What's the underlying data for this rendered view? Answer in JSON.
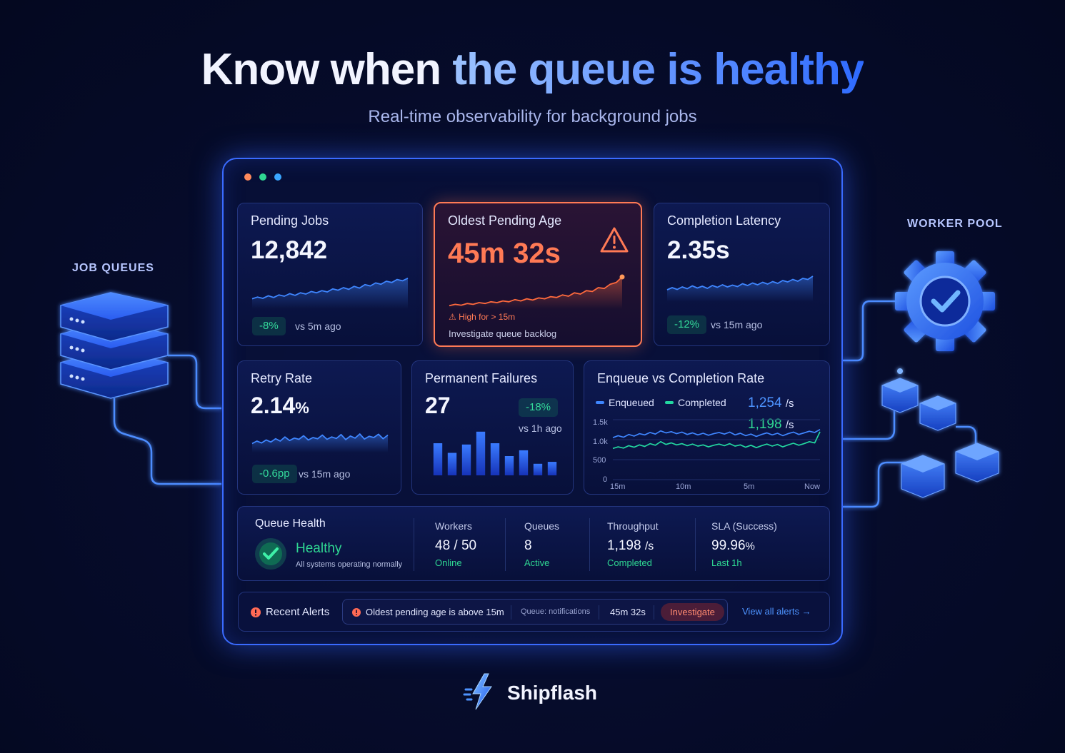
{
  "headline": {
    "part1": "Know when ",
    "part2": "the queue is healthy"
  },
  "subhead": "Real-time observability for background jobs",
  "side_labels": {
    "left": "JOB QUEUES",
    "right": "WORKER POOL"
  },
  "colors": {
    "accent": "#3a6bff",
    "alert": "#ff7a55",
    "success": "#2fd792",
    "series_blue": "#3f86ff",
    "series_green": "#23d7a0"
  },
  "cards": {
    "pending_jobs": {
      "title": "Pending Jobs",
      "value": "12,842",
      "delta": "-8%",
      "compare": "vs 5m ago"
    },
    "oldest_pending": {
      "title": "Oldest Pending Age",
      "value": "45m 32s",
      "warning": "High for > 15m",
      "note": "Investigate queue backlog",
      "icon": "warning-triangle-icon"
    },
    "completion_latency": {
      "title": "Completion Latency",
      "value": "2.35s",
      "delta": "-12%",
      "compare": "vs 15m ago"
    },
    "retry_rate": {
      "title": "Retry Rate",
      "value": "2.14",
      "unit": "%",
      "delta": "-0.6pp",
      "compare": "vs 15m ago"
    },
    "permanent_failures": {
      "title": "Permanent Failures",
      "value": "27",
      "delta": "-18%",
      "compare": "vs 1h ago"
    },
    "enqueue_vs_completion": {
      "title": "Enqueue vs Completion Rate",
      "legend": {
        "enqueued": "Enqueued",
        "completed": "Completed"
      },
      "enqueued_rate": "1,254",
      "completed_rate": "1,198",
      "rate_unit": "/s",
      "y_ticks": [
        "1.5k",
        "1.0k",
        "500",
        "0"
      ],
      "x_ticks": [
        "15m",
        "10m",
        "5m",
        "Now"
      ]
    }
  },
  "health": {
    "title": "Queue Health",
    "status": "Healthy",
    "status_note": "All systems operating normally",
    "stats": [
      {
        "label": "Workers",
        "value": "48 / 50",
        "sub": "Online"
      },
      {
        "label": "Queues",
        "value": "8",
        "sub": "Active"
      },
      {
        "label": "Throughput",
        "value": "1,198",
        "unit": "/s",
        "sub": "Completed"
      },
      {
        "label": "SLA (Success)",
        "value": "99.96",
        "unit": "%",
        "sub": "Last 1h"
      }
    ]
  },
  "alerts": {
    "label": "Recent Alerts",
    "message": "Oldest pending age is above 15m",
    "queue": "Queue: notifications",
    "age": "45m 32s",
    "action": "Investigate",
    "view_all": "View all alerts →"
  },
  "brand": "Shipflash",
  "chart_data": [
    {
      "type": "line",
      "title": "Pending Jobs",
      "x": [
        1,
        2,
        3,
        4,
        5,
        6,
        7,
        8,
        9,
        10,
        11,
        12,
        13,
        14,
        15,
        16,
        17,
        18,
        19,
        20,
        21,
        22,
        23,
        24,
        25,
        26,
        27,
        28,
        29,
        30
      ],
      "series": [
        {
          "values": [
            24,
            28,
            25,
            31,
            27,
            33,
            30,
            36,
            32,
            38,
            35,
            41,
            38,
            43,
            40,
            47,
            44,
            50,
            46,
            53,
            49,
            57,
            54,
            61,
            58,
            65,
            62,
            69,
            66,
            72
          ]
        }
      ],
      "ylim": [
        0,
        100
      ]
    },
    {
      "type": "line",
      "title": "Oldest Pending Age",
      "x": [
        1,
        2,
        3,
        4,
        5,
        6,
        7,
        8,
        9,
        10,
        11,
        12,
        13,
        14,
        15,
        16,
        17,
        18,
        19,
        20,
        21,
        22,
        23,
        24,
        25,
        26,
        27,
        28,
        29,
        30
      ],
      "series": [
        {
          "values": [
            8,
            11,
            9,
            13,
            11,
            15,
            13,
            17,
            15,
            19,
            17,
            22,
            19,
            24,
            21,
            26,
            24,
            29,
            27,
            33,
            30,
            38,
            35,
            43,
            41,
            50,
            48,
            58,
            62,
            75
          ]
        }
      ],
      "ylim": [
        0,
        100
      ]
    },
    {
      "type": "line",
      "title": "Completion Latency",
      "x": [
        1,
        2,
        3,
        4,
        5,
        6,
        7,
        8,
        9,
        10,
        11,
        12,
        13,
        14,
        15,
        16,
        17,
        18,
        19,
        20,
        21,
        22,
        23,
        24,
        25,
        26,
        27,
        28,
        29,
        30
      ],
      "series": [
        {
          "values": [
            34,
            40,
            35,
            42,
            37,
            45,
            39,
            44,
            38,
            46,
            41,
            48,
            42,
            47,
            43,
            51,
            46,
            53,
            48,
            55,
            50,
            57,
            52,
            60,
            56,
            63,
            58,
            66,
            63,
            72
          ]
        }
      ],
      "ylim": [
        0,
        100
      ]
    },
    {
      "type": "line",
      "title": "Retry Rate",
      "x": [
        1,
        2,
        3,
        4,
        5,
        6,
        7,
        8,
        9,
        10,
        11,
        12,
        13,
        14,
        15,
        16,
        17,
        18,
        19,
        20,
        21,
        22,
        23,
        24,
        25,
        26,
        27,
        28,
        29,
        30
      ],
      "series": [
        {
          "values": [
            30,
            38,
            32,
            42,
            35,
            46,
            38,
            52,
            40,
            48,
            44,
            56,
            42,
            50,
            46,
            58,
            44,
            52,
            47,
            60,
            43,
            55,
            48,
            62,
            45,
            54,
            50,
            61,
            46,
            58
          ]
        }
      ],
      "ylim": [
        0,
        100
      ]
    },
    {
      "type": "bar",
      "title": "Permanent Failures",
      "categories": [
        "1",
        "2",
        "3",
        "4",
        "5",
        "6",
        "7",
        "8",
        "9"
      ],
      "values": [
        5,
        3.5,
        4.8,
        6.8,
        5,
        3,
        3.9,
        1.8,
        2.1
      ],
      "ylim": [
        0,
        8
      ]
    },
    {
      "type": "line",
      "title": "Enqueue vs Completion Rate",
      "x": [
        1,
        2,
        3,
        4,
        5,
        6,
        7,
        8,
        9,
        10,
        11,
        12,
        13,
        14,
        15,
        16,
        17,
        18,
        19,
        20,
        21,
        22,
        23,
        24,
        25,
        26,
        27,
        28,
        29,
        30,
        31,
        32,
        33,
        34,
        35,
        36,
        37,
        38,
        39,
        40
      ],
      "series": [
        {
          "name": "Enqueued",
          "values": [
            1050,
            1100,
            1060,
            1130,
            1090,
            1150,
            1120,
            1180,
            1140,
            1220,
            1170,
            1200,
            1150,
            1190,
            1130,
            1170,
            1120,
            1160,
            1110,
            1150,
            1180,
            1140,
            1190,
            1120,
            1160,
            1100,
            1140,
            1080,
            1130,
            1170,
            1120,
            1160,
            1100,
            1150,
            1190,
            1130,
            1170,
            1210,
            1180,
            1254
          ]
        },
        {
          "name": "Completed",
          "values": [
            780,
            820,
            790,
            850,
            810,
            870,
            830,
            900,
            860,
            950,
            880,
            920,
            870,
            900,
            850,
            890,
            840,
            870,
            820,
            860,
            890,
            850,
            900,
            840,
            870,
            810,
            860,
            800,
            850,
            890,
            840,
            880,
            820,
            870,
            910,
            860,
            900,
            950,
            920,
            1198
          ]
        }
      ],
      "xlabel": "",
      "ylabel": "",
      "y_ticks": [
        "0",
        "500",
        "1.0k",
        "1.5k"
      ],
      "x_ticks": [
        "15m",
        "10m",
        "5m",
        "Now"
      ],
      "ylim": [
        0,
        1500
      ]
    }
  ]
}
